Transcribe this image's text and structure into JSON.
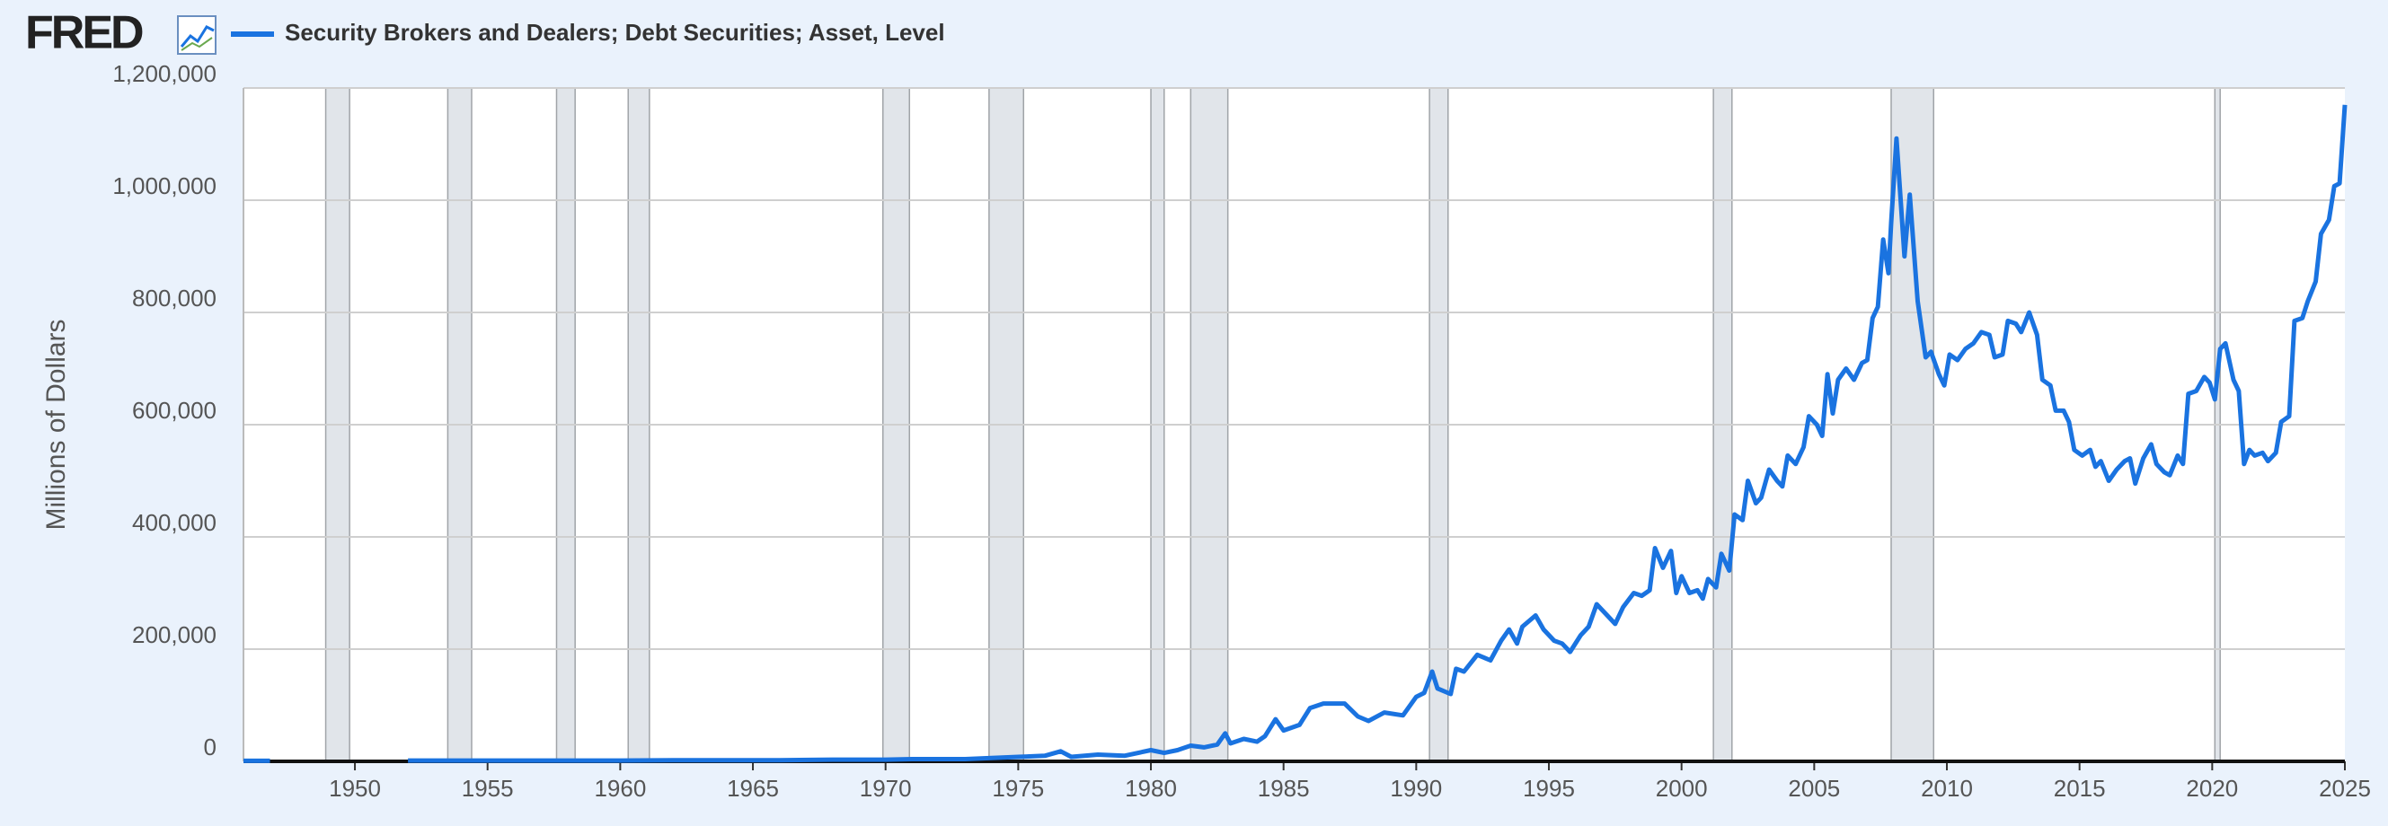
{
  "logo": "FRED",
  "chart_data": {
    "type": "line",
    "ylabel": "Millions of Dollars",
    "xlim": [
      1945.8,
      2025
    ],
    "xticks": [
      1950,
      1955,
      1960,
      1965,
      1970,
      1975,
      1980,
      1985,
      1990,
      1995,
      2000,
      2005,
      2010,
      2015,
      2020,
      2025
    ],
    "ylim": [
      0,
      1200000
    ],
    "yticks": [
      0,
      {
        "value": 200000,
        "label": "200,000"
      },
      {
        "value": 400000,
        "label": "400,000"
      },
      {
        "value": 600000,
        "label": "600,000"
      },
      {
        "value": 800000,
        "label": "800,000"
      },
      {
        "value": 1000000,
        "label": "1,000,000"
      },
      {
        "value": 1200000,
        "label": "1,200,000"
      }
    ],
    "grid": true,
    "recessions": [
      [
        1948.9,
        1949.8
      ],
      [
        1953.5,
        1954.4
      ],
      [
        1957.6,
        1958.3
      ],
      [
        1960.3,
        1961.1
      ],
      [
        1969.9,
        1970.9
      ],
      [
        1973.9,
        1975.2
      ],
      [
        1980.0,
        1980.5
      ],
      [
        1981.5,
        1982.9
      ],
      [
        1990.5,
        1991.2
      ],
      [
        2001.2,
        2001.9
      ],
      [
        2007.9,
        2009.5
      ],
      [
        2020.1,
        2020.3
      ]
    ],
    "recession_color": "#e1e5ea",
    "x": [
      1945.8,
      1946.3,
      1946.8,
      1949,
      1952,
      1954,
      1956,
      1958,
      1960,
      1962,
      1964,
      1966,
      1968,
      1970,
      1971,
      1973,
      1974,
      1975,
      1976,
      1976.6,
      1977,
      1978,
      1979,
      1980,
      1980.5,
      1981,
      1981.5,
      1982,
      1982.5,
      1982.8,
      1983,
      1983.5,
      1984,
      1984.3,
      1984.7,
      1985,
      1985.6,
      1986,
      1986.5,
      1987.3,
      1987.8,
      1988.2,
      1988.8,
      1989.5,
      1990,
      1990.3,
      1990.6,
      1990.8,
      1991.3,
      1991.5,
      1991.8,
      1992.3,
      1992.8,
      1993.2,
      1993.5,
      1993.8,
      1994,
      1994.5,
      1994.8,
      1995.2,
      1995.5,
      1995.8,
      1996.2,
      1996.5,
      1996.8,
      1997.2,
      1997.5,
      1997.8,
      1998.2,
      1998.5,
      1998.8,
      1999,
      1999.3,
      1999.6,
      1999.8,
      2000,
      2000.3,
      2000.6,
      2000.8,
      2001,
      2001.3,
      2001.5,
      2001.8,
      2002,
      2002.3,
      2002.5,
      2002.8,
      2003,
      2003.3,
      2003.6,
      2003.8,
      2004,
      2004.3,
      2004.6,
      2004.8,
      2005.1,
      2005.3,
      2005.5,
      2005.7,
      2005.9,
      2006.2,
      2006.5,
      2006.8,
      2007,
      2007.2,
      2007.4,
      2007.6,
      2007.8,
      2007.9,
      2008.1,
      2008.4,
      2008.6,
      2008.9,
      2009.2,
      2009.4,
      2009.7,
      2009.9,
      2010.1,
      2010.4,
      2010.7,
      2011,
      2011.3,
      2011.6,
      2011.8,
      2012.1,
      2012.3,
      2012.6,
      2012.8,
      2013.1,
      2013.4,
      2013.6,
      2013.9,
      2014.1,
      2014.4,
      2014.6,
      2014.8,
      2015.1,
      2015.4,
      2015.6,
      2015.8,
      2016.1,
      2016.4,
      2016.7,
      2016.9,
      2017.1,
      2017.4,
      2017.7,
      2017.9,
      2018.2,
      2018.4,
      2018.7,
      2018.9,
      2019.1,
      2019.4,
      2019.7,
      2019.9,
      2020.1,
      2020.3,
      2020.5,
      2020.8,
      2021,
      2021.2,
      2021.4,
      2021.6,
      2021.9,
      2022.1,
      2022.4,
      2022.6,
      2022.9,
      2023.1,
      2023.4,
      2023.6,
      2023.9,
      2024.1,
      2024.4,
      2024.6,
      2024.8,
      2025
    ],
    "series": [
      {
        "name": "Security Brokers and Dealers; Debt Securities; Asset, Level",
        "color": "#1a73e0",
        "values": [
          1000,
          1000,
          1000,
          null,
          1500,
          1500,
          1500,
          1500,
          1500,
          2000,
          2000,
          2000,
          3000,
          3000,
          4000,
          4000,
          6000,
          8000,
          10000,
          18000,
          8000,
          12000,
          10000,
          20000,
          15000,
          20000,
          28000,
          25000,
          30000,
          50000,
          32000,
          40000,
          35000,
          45000,
          75000,
          55000,
          65000,
          95000,
          103000,
          103000,
          80000,
          72000,
          87000,
          82000,
          115000,
          122000,
          160000,
          130000,
          120000,
          165000,
          160000,
          190000,
          180000,
          215000,
          235000,
          210000,
          240000,
          260000,
          235000,
          215000,
          210000,
          195000,
          225000,
          240000,
          280000,
          260000,
          245000,
          275000,
          300000,
          295000,
          305000,
          380000,
          345000,
          375000,
          300000,
          330000,
          300000,
          305000,
          290000,
          325000,
          310000,
          370000,
          340000,
          440000,
          430000,
          500000,
          460000,
          470000,
          520000,
          500000,
          490000,
          545000,
          530000,
          560000,
          615000,
          600000,
          580000,
          690000,
          620000,
          680000,
          700000,
          680000,
          710000,
          715000,
          790000,
          810000,
          930000,
          870000,
          960000,
          1110000,
          900000,
          1010000,
          820000,
          720000,
          730000,
          690000,
          670000,
          725000,
          715000,
          735000,
          745000,
          765000,
          760000,
          720000,
          725000,
          785000,
          780000,
          765000,
          800000,
          760000,
          680000,
          670000,
          625000,
          625000,
          605000,
          555000,
          545000,
          555000,
          525000,
          535000,
          500000,
          520000,
          535000,
          540000,
          495000,
          540000,
          565000,
          530000,
          515000,
          510000,
          545000,
          530000,
          655000,
          660000,
          685000,
          675000,
          645000,
          735000,
          745000,
          680000,
          660000,
          530000,
          555000,
          545000,
          550000,
          535000,
          550000,
          605000,
          615000,
          785000,
          790000,
          820000,
          855000,
          940000,
          965000,
          1025000,
          1030000,
          1170000
        ]
      }
    ]
  }
}
